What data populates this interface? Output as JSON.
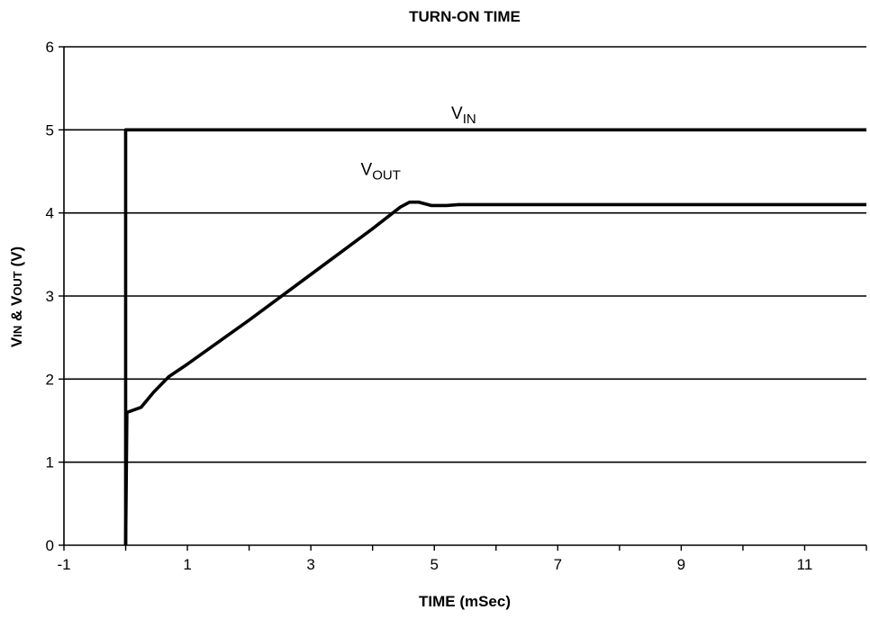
{
  "chart_data": {
    "type": "line",
    "title": "TURN-ON TIME",
    "xlabel": "TIME (mSec)",
    "ylabel": {
      "parts": [
        {
          "text": "V",
          "sub": false
        },
        {
          "text": "IN",
          "sub": true
        },
        {
          "text": " & V",
          "sub": false
        },
        {
          "text": "OUT",
          "sub": true
        },
        {
          "text": " (V)",
          "sub": false
        }
      ]
    },
    "xlim": [
      -1,
      12
    ],
    "ylim": [
      0,
      6
    ],
    "x_ticks": [
      -1,
      1,
      3,
      5,
      7,
      9,
      11
    ],
    "y_ticks": [
      0,
      1,
      2,
      3,
      4,
      5,
      6
    ],
    "grid": {
      "horizontal": true,
      "vertical": false
    },
    "legend": "none",
    "series": [
      {
        "label": {
          "main": "V",
          "sub": "IN"
        },
        "color": "#000000",
        "points": [
          [
            0,
            0
          ],
          [
            0,
            5
          ],
          [
            12,
            5
          ]
        ]
      },
      {
        "label": {
          "main": "V",
          "sub": "OUT"
        },
        "color": "#000000",
        "points": [
          [
            0.0,
            0.0
          ],
          [
            0.02,
            1.6
          ],
          [
            0.1,
            1.62
          ],
          [
            0.25,
            1.66
          ],
          [
            0.45,
            1.84
          ],
          [
            0.7,
            2.03
          ],
          [
            1.0,
            2.18
          ],
          [
            2.0,
            2.71
          ],
          [
            3.0,
            3.26
          ],
          [
            4.0,
            3.81
          ],
          [
            4.45,
            4.07
          ],
          [
            4.6,
            4.13
          ],
          [
            4.75,
            4.13
          ],
          [
            4.95,
            4.09
          ],
          [
            5.2,
            4.09
          ],
          [
            5.4,
            4.1
          ],
          [
            12.0,
            4.1
          ]
        ]
      }
    ]
  }
}
